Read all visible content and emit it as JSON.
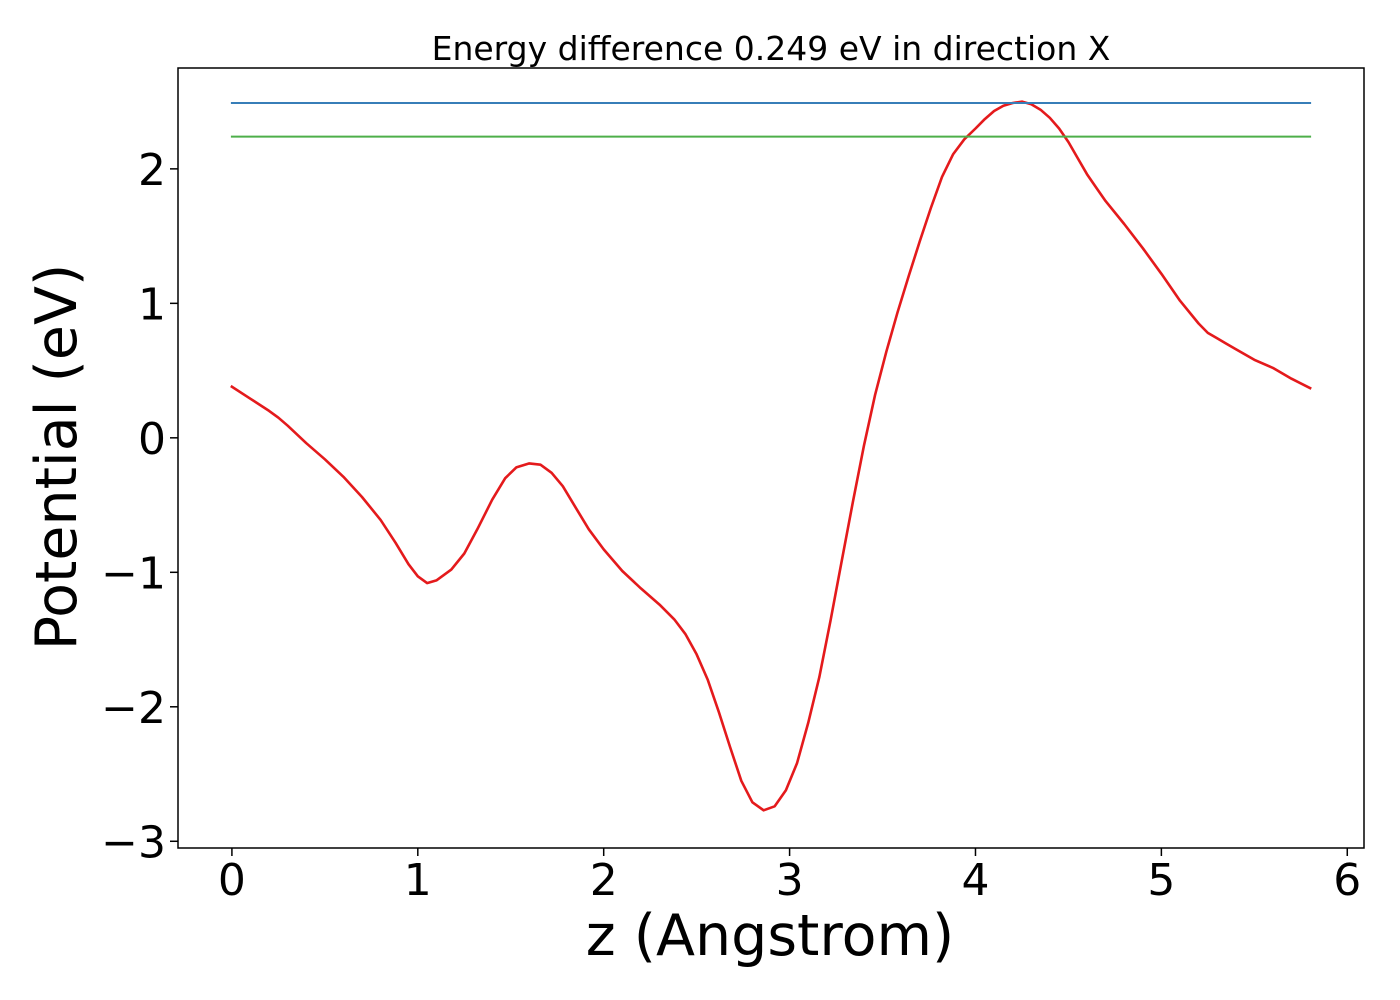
{
  "chart_data": {
    "type": "line",
    "title": "Energy difference 0.249 eV in direction X",
    "xlabel": "z (Angstrom)",
    "ylabel": "Potential (eV)",
    "xlim": [
      -0.29,
      6.09
    ],
    "ylim": [
      -3.05,
      2.75
    ],
    "xticks": [
      0,
      1,
      2,
      3,
      4,
      5,
      6
    ],
    "yticks": [
      -3,
      -2,
      -1,
      0,
      1,
      2
    ],
    "xtick_labels": [
      "0",
      "1",
      "2",
      "3",
      "4",
      "5",
      "6"
    ],
    "ytick_labels": [
      "−3",
      "−2",
      "−1",
      "0",
      "1",
      "2"
    ],
    "grid": false,
    "series": [
      {
        "color": "#e41a1c",
        "x": [
          0,
          0.1,
          0.2,
          0.25,
          0.3,
          0.4,
          0.5,
          0.6,
          0.7,
          0.8,
          0.88,
          0.95,
          1.0,
          1.05,
          1.1,
          1.18,
          1.25,
          1.32,
          1.4,
          1.47,
          1.53,
          1.6,
          1.66,
          1.72,
          1.78,
          1.85,
          1.92,
          2.0,
          2.1,
          2.2,
          2.3,
          2.38,
          2.44,
          2.5,
          2.56,
          2.62,
          2.68,
          2.74,
          2.8,
          2.86,
          2.92,
          2.98,
          3.04,
          3.1,
          3.16,
          3.22,
          3.28,
          3.34,
          3.4,
          3.46,
          3.52,
          3.58,
          3.64,
          3.7,
          3.76,
          3.82,
          3.88,
          3.94,
          4.0,
          4.05,
          4.1,
          4.15,
          4.2,
          4.25,
          4.3,
          4.35,
          4.4,
          4.45,
          4.5,
          4.55,
          4.6,
          4.65,
          4.7,
          4.8,
          4.9,
          5.0,
          5.1,
          5.2,
          5.25,
          5.3,
          5.35,
          5.4,
          5.5,
          5.6,
          5.7,
          5.8
        ],
        "y": [
          0.38,
          0.29,
          0.2,
          0.15,
          0.09,
          -0.04,
          -0.16,
          -0.29,
          -0.44,
          -0.61,
          -0.78,
          -0.94,
          -1.03,
          -1.08,
          -1.06,
          -0.98,
          -0.86,
          -0.68,
          -0.46,
          -0.3,
          -0.22,
          -0.19,
          -0.2,
          -0.26,
          -0.36,
          -0.52,
          -0.68,
          -0.83,
          -0.99,
          -1.12,
          -1.24,
          -1.35,
          -1.46,
          -1.61,
          -1.8,
          -2.04,
          -2.3,
          -2.55,
          -2.71,
          -2.77,
          -2.74,
          -2.62,
          -2.42,
          -2.12,
          -1.78,
          -1.36,
          -0.92,
          -0.48,
          -0.06,
          0.32,
          0.64,
          0.93,
          1.2,
          1.46,
          1.71,
          1.94,
          2.11,
          2.22,
          2.3,
          2.37,
          2.43,
          2.47,
          2.49,
          2.5,
          2.48,
          2.44,
          2.38,
          2.3,
          2.2,
          2.08,
          1.96,
          1.86,
          1.76,
          1.59,
          1.41,
          1.22,
          1.02,
          0.85,
          0.78,
          0.74,
          0.7,
          0.66,
          0.58,
          0.52,
          0.44,
          0.37
        ]
      },
      {
        "color": "#377eb8",
        "x": [
          0,
          5.8
        ],
        "y": [
          2.49,
          2.49
        ]
      },
      {
        "color": "#4daf4a",
        "x": [
          0,
          5.8
        ],
        "y": [
          2.24,
          2.24
        ]
      }
    ]
  }
}
